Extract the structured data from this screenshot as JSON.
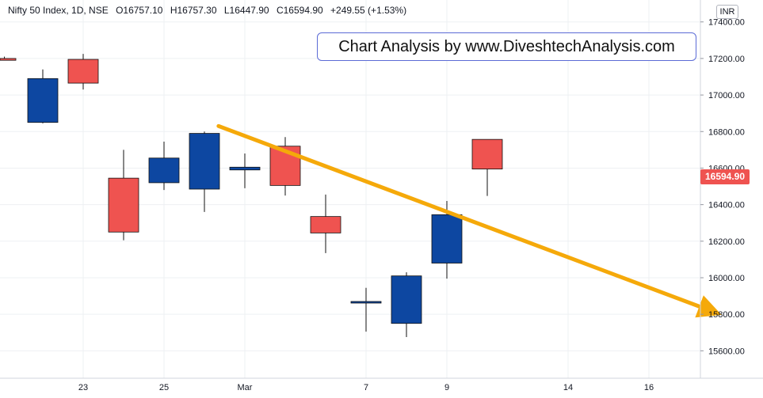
{
  "legend": {
    "symbol": "Nifty 50 Index, 1D, NSE",
    "open": "O16757.10",
    "high": "H16757.30",
    "low": "L16447.90",
    "close": "C16594.90",
    "change": "+249.55 (+1.53%)"
  },
  "banner_text": "Chart Analysis by www.DiveshtechAnalysis.com",
  "currency": "INR",
  "last_price": "16594.90",
  "colors": {
    "up": "#0d47a1",
    "down": "#ef5350",
    "trendline": "#f5a90a",
    "grid": "#eef0f3",
    "text": "#131722",
    "price_tag": "#ef5350"
  },
  "chart_data": {
    "type": "candlestick",
    "ylim": [
      15450,
      17520
    ],
    "y_ticks": [
      15600,
      15800,
      16000,
      16200,
      16400,
      16600,
      16800,
      17000,
      17200,
      17400
    ],
    "y_tick_labels": [
      "15600.00",
      "15800.00",
      "16000.00",
      "16200.00",
      "16400.00",
      "16600.00",
      "16800.00",
      "17000.00",
      "17200.00",
      "17400.00"
    ],
    "x_labels": [
      {
        "label": "23",
        "slot": 2
      },
      {
        "label": "25",
        "slot": 4
      },
      {
        "label": "Mar",
        "slot": 6
      },
      {
        "label": "7",
        "slot": 9
      },
      {
        "label": "9",
        "slot": 11
      },
      {
        "label": "14",
        "slot": 14
      },
      {
        "label": "16",
        "slot": 16
      }
    ],
    "slots_visible": 17.6,
    "candles": [
      {
        "slot": 0.05,
        "open": 17200,
        "high": 17210,
        "low": 17190,
        "close": 17190,
        "partial": true
      },
      {
        "slot": 1,
        "open": 16850,
        "high": 17140,
        "low": 16845,
        "close": 17090
      },
      {
        "slot": 2,
        "open": 17195,
        "high": 17225,
        "low": 17030,
        "close": 17065
      },
      {
        "slot": 3,
        "open": 16545,
        "high": 16700,
        "low": 16205,
        "close": 16250
      },
      {
        "slot": 4,
        "open": 16520,
        "high": 16745,
        "low": 16480,
        "close": 16655
      },
      {
        "slot": 5,
        "open": 16485,
        "high": 16800,
        "low": 16360,
        "close": 16790
      },
      {
        "slot": 6,
        "open": 16590,
        "high": 16680,
        "low": 16490,
        "close": 16605
      },
      {
        "slot": 7,
        "open": 16720,
        "high": 16770,
        "low": 16450,
        "close": 16505
      },
      {
        "slot": 8,
        "open": 16335,
        "high": 16455,
        "low": 16135,
        "close": 16245
      },
      {
        "slot": 9,
        "open": 15865,
        "high": 15945,
        "low": 15705,
        "close": 15870
      },
      {
        "slot": 10,
        "open": 15750,
        "high": 16030,
        "low": 15675,
        "close": 16010
      },
      {
        "slot": 11,
        "open": 16080,
        "high": 16420,
        "low": 15995,
        "close": 16345
      },
      {
        "slot": 12,
        "open": 16757.1,
        "high": 16757.3,
        "low": 16447.9,
        "close": 16594.9
      }
    ],
    "trendline": {
      "from": {
        "slot": 5.35,
        "value": 16830
      },
      "to": {
        "slot": 17.6,
        "value": 15820
      }
    }
  }
}
